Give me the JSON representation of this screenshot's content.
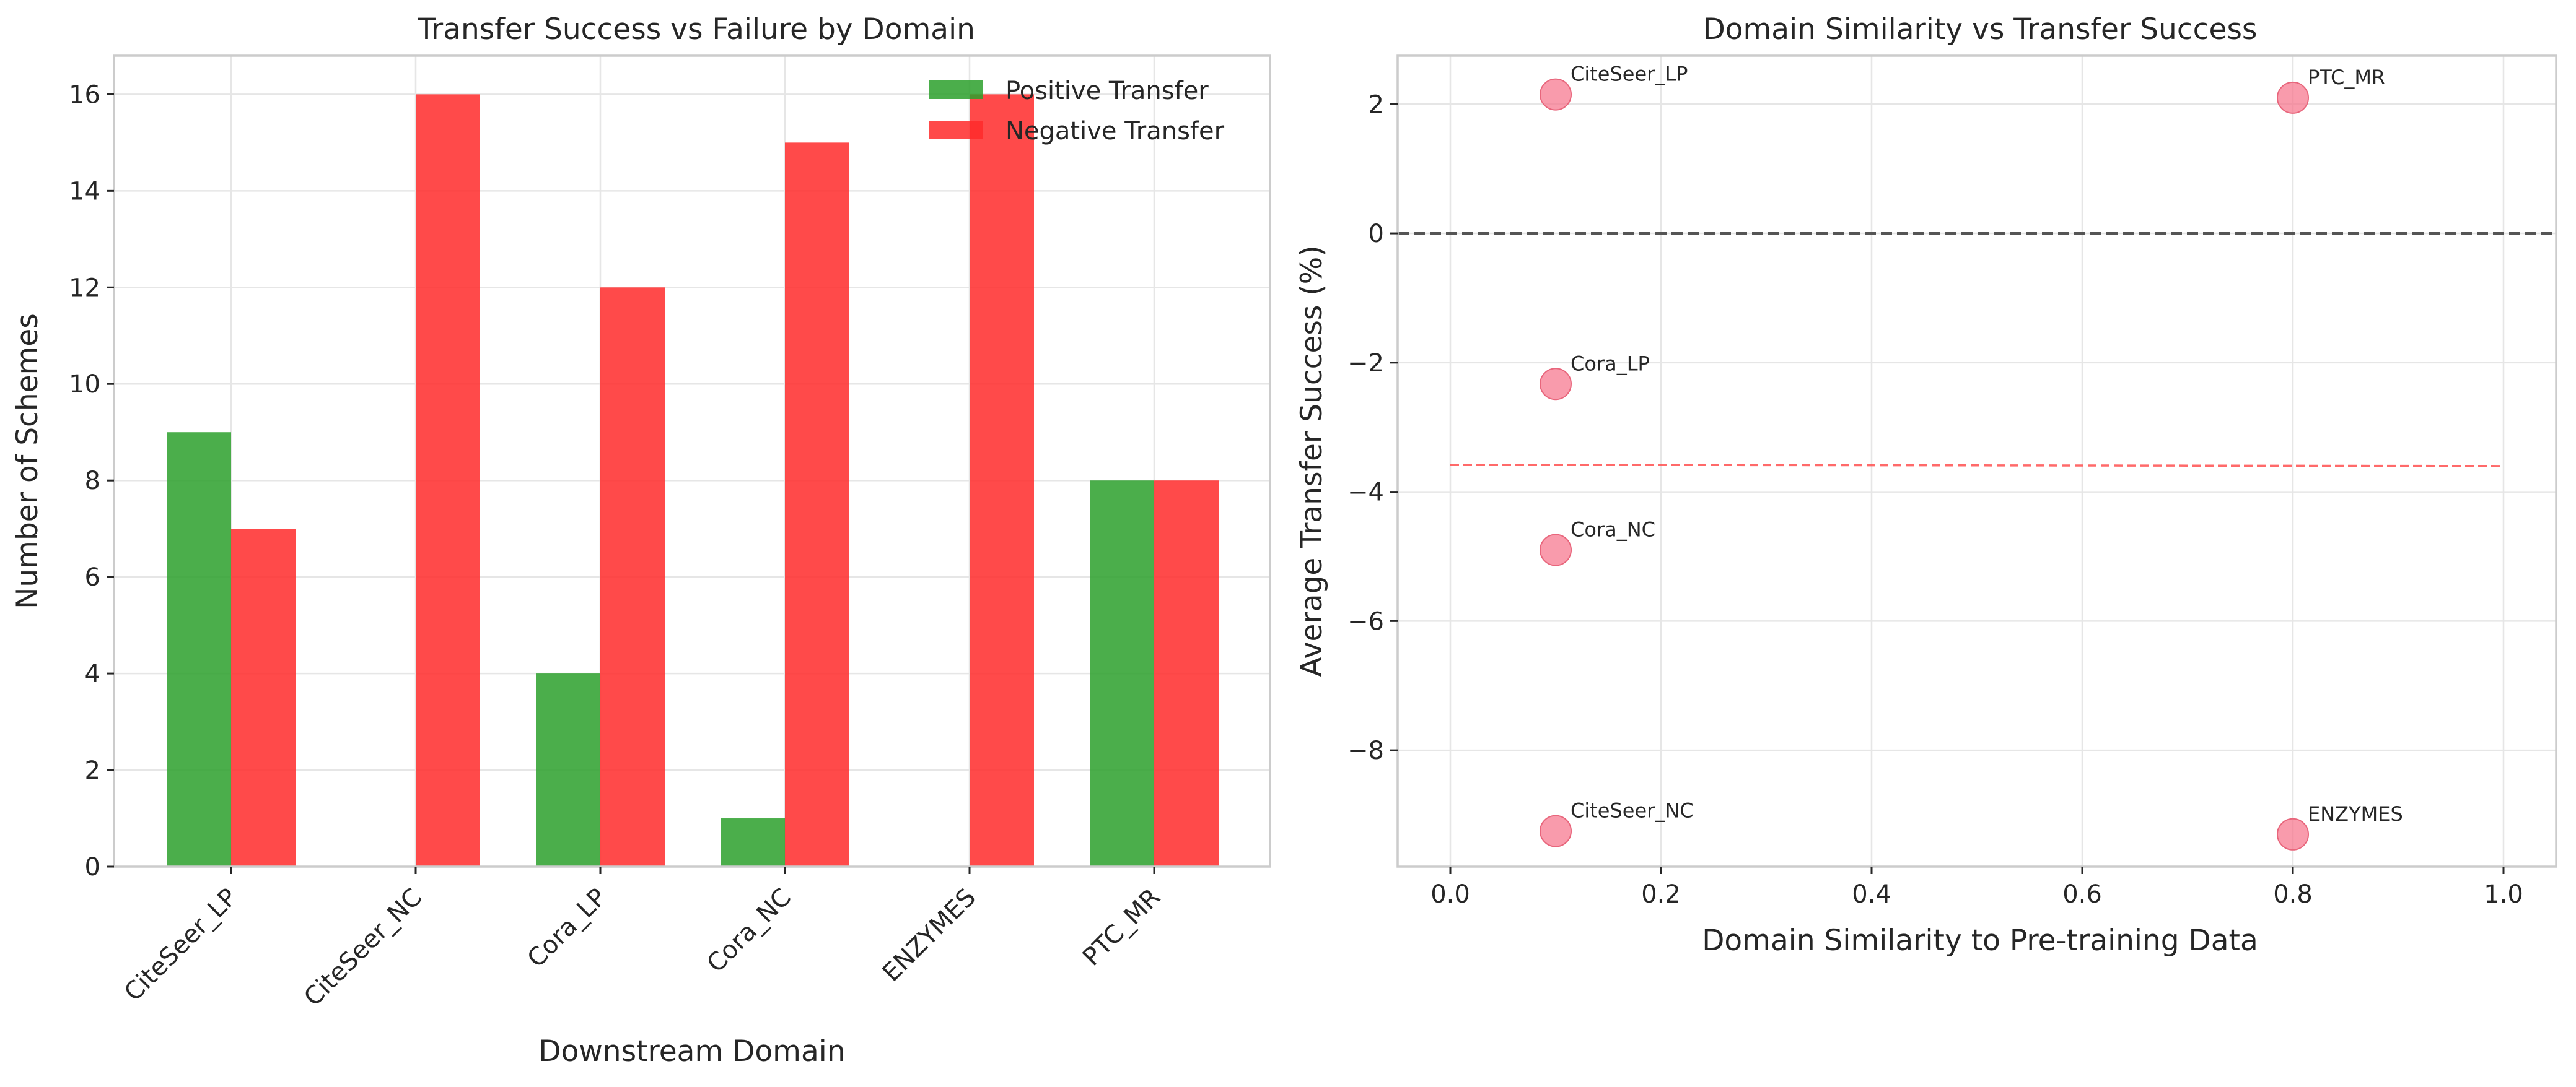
{
  "colors": {
    "positive": "#2ca02c",
    "negative": "#ff2a2a",
    "points": "#f77189",
    "trend": "#ff5050",
    "zero_line": "#555555"
  },
  "chart_data": [
    {
      "type": "bar",
      "title": "Transfer Success vs Failure by Domain",
      "xlabel": "Downstream Domain",
      "ylabel": "Number of Schemes",
      "categories": [
        "CiteSeer_LP",
        "CiteSeer_NC",
        "Cora_LP",
        "Cora_NC",
        "ENZYMES",
        "PTC_MR"
      ],
      "series": [
        {
          "name": "Positive Transfer",
          "values": [
            9,
            0,
            4,
            1,
            0,
            8
          ]
        },
        {
          "name": "Negative Transfer",
          "values": [
            7,
            16,
            12,
            15,
            16,
            8
          ]
        }
      ],
      "ylim": [
        0,
        16.8
      ],
      "yticks": [
        "0",
        "2",
        "4",
        "6",
        "8",
        "10",
        "12",
        "14",
        "16"
      ],
      "grid": true,
      "legend": "top-right"
    },
    {
      "type": "scatter",
      "title": "Domain Similarity vs Transfer Success",
      "xlabel": "Domain Similarity to Pre-training Data",
      "ylabel": "Average Transfer Success (%)",
      "points": [
        {
          "label": "CiteSeer_LP",
          "x": 0.1,
          "y": 2.15
        },
        {
          "label": "PTC_MR",
          "x": 0.8,
          "y": 2.1
        },
        {
          "label": "Cora_LP",
          "x": 0.1,
          "y": -2.33
        },
        {
          "label": "Cora_NC",
          "x": 0.1,
          "y": -4.9
        },
        {
          "label": "CiteSeer_NC",
          "x": 0.1,
          "y": -9.25
        },
        {
          "label": "ENZYMES",
          "x": 0.8,
          "y": -9.3
        }
      ],
      "trend_line": {
        "x": [
          0.0,
          1.0
        ],
        "y": [
          -3.58,
          -3.6
        ]
      },
      "reference_line_y": 0,
      "xlim": [
        -0.05,
        1.05
      ],
      "ylim": [
        -9.8,
        2.75
      ],
      "xticks": [
        "0.0",
        "0.2",
        "0.4",
        "0.6",
        "0.8",
        "1.0"
      ],
      "yticks": [
        "2",
        "0",
        "−2",
        "−4",
        "−6",
        "−8"
      ],
      "grid": true
    }
  ]
}
